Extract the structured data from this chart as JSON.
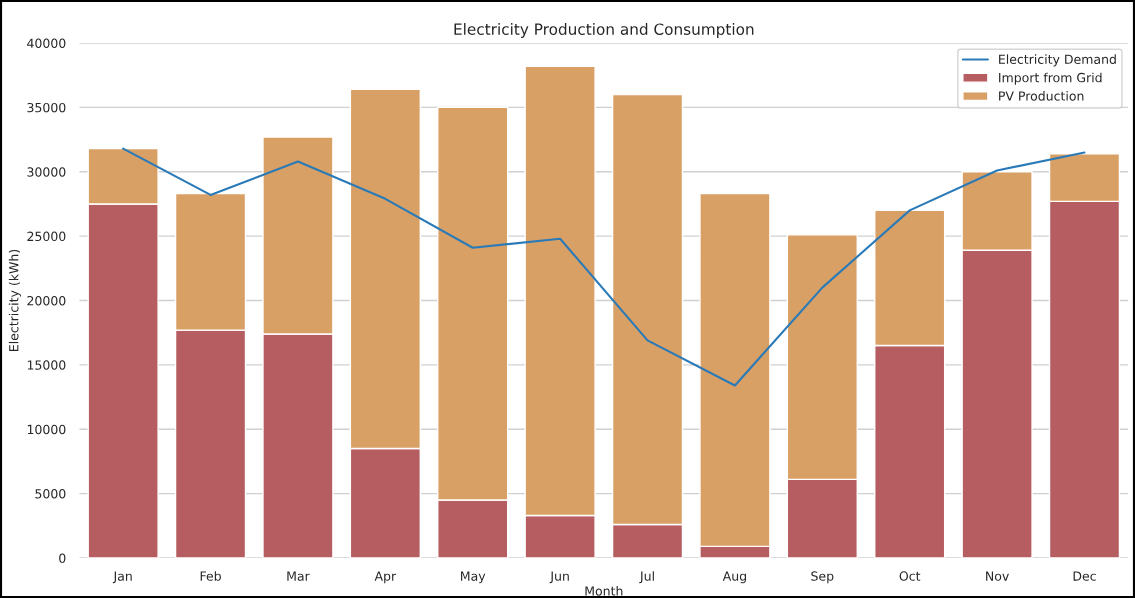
{
  "chart_data": {
    "type": "bar",
    "title": "Electricity Production and Consumption",
    "xlabel": "Month",
    "ylabel": "Electricity (kWh)",
    "categories": [
      "Jan",
      "Feb",
      "Mar",
      "Apr",
      "May",
      "Jun",
      "Jul",
      "Aug",
      "Sep",
      "Oct",
      "Nov",
      "Dec"
    ],
    "stacked": true,
    "series": [
      {
        "name": "Import from Grid",
        "color": "#b55d60",
        "values": [
          27500,
          17700,
          17400,
          8500,
          4500,
          3300,
          2600,
          900,
          6100,
          16500,
          23900,
          27700
        ]
      },
      {
        "name": "PV Production",
        "color": "#d9a066",
        "values": [
          4300,
          10600,
          15300,
          27900,
          30500,
          34900,
          33400,
          27400,
          19000,
          10500,
          6100,
          3700
        ]
      },
      {
        "name": "Electricity Demand",
        "type": "line",
        "color": "#2a7ab8",
        "values": [
          31800,
          28200,
          30800,
          27900,
          24100,
          24800,
          16900,
          13400,
          21000,
          27000,
          30100,
          31500
        ]
      }
    ],
    "ylim": [
      0,
      40000
    ],
    "yticks": [
      0,
      5000,
      10000,
      15000,
      20000,
      25000,
      30000,
      35000,
      40000
    ],
    "grid": "y",
    "legend": "top right",
    "marker": "none",
    "line_style": "solid"
  }
}
